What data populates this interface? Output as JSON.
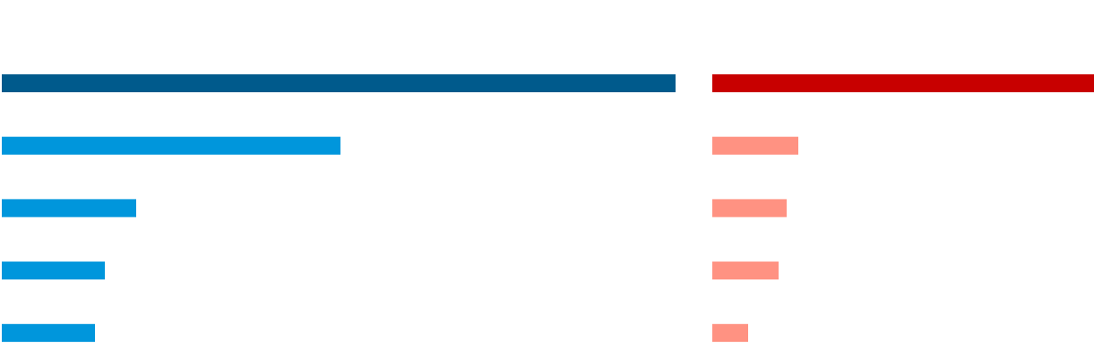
{
  "chart_data": [
    {
      "type": "bar",
      "orientation": "horizontal",
      "values": [
        752,
        378,
        150,
        115,
        104
      ],
      "colors": [
        "#005a8c",
        "#0096dc",
        "#0096dc",
        "#0096dc",
        "#0096dc"
      ]
    },
    {
      "type": "bar",
      "orientation": "horizontal",
      "values": [
        426,
        96,
        83,
        74,
        40
      ],
      "colors": [
        "#c80000",
        "#ff9282",
        "#ff9282",
        "#ff9282",
        "#ff9282"
      ]
    }
  ]
}
